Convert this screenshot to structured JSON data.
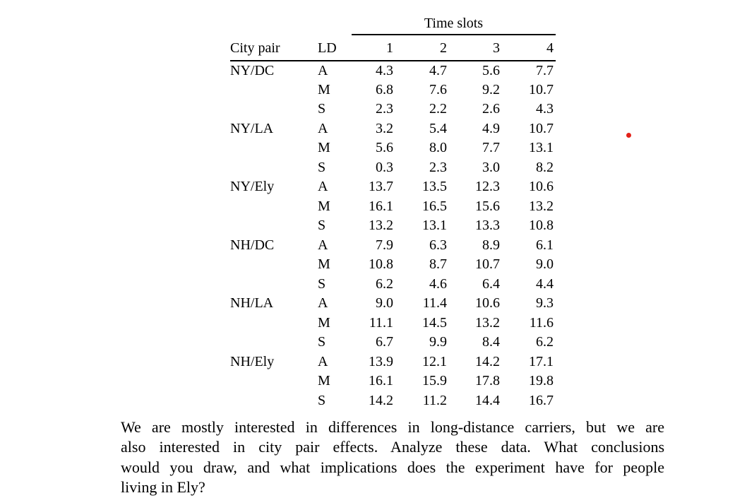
{
  "colors": {
    "background": "#ffffff",
    "text": "#000000",
    "marker": "#e32119"
  },
  "table": {
    "title": "Time slots",
    "columns": {
      "city": "City pair",
      "ld": "LD",
      "slots": [
        "1",
        "2",
        "3",
        "4"
      ]
    },
    "groups": [
      {
        "city": "NY/DC",
        "rows": [
          {
            "ld": "A",
            "values": [
              "4.3",
              "4.7",
              "5.6",
              "7.7"
            ]
          },
          {
            "ld": "M",
            "values": [
              "6.8",
              "7.6",
              "9.2",
              "10.7"
            ]
          },
          {
            "ld": "S",
            "values": [
              "2.3",
              "2.2",
              "2.6",
              "4.3"
            ]
          }
        ]
      },
      {
        "city": "NY/LA",
        "rows": [
          {
            "ld": "A",
            "values": [
              "3.2",
              "5.4",
              "4.9",
              "10.7"
            ]
          },
          {
            "ld": "M",
            "values": [
              "5.6",
              "8.0",
              "7.7",
              "13.1"
            ]
          },
          {
            "ld": "S",
            "values": [
              "0.3",
              "2.3",
              "3.0",
              "8.2"
            ]
          }
        ]
      },
      {
        "city": "NY/Ely",
        "rows": [
          {
            "ld": "A",
            "values": [
              "13.7",
              "13.5",
              "12.3",
              "10.6"
            ]
          },
          {
            "ld": "M",
            "values": [
              "16.1",
              "16.5",
              "15.6",
              "13.2"
            ]
          },
          {
            "ld": "S",
            "values": [
              "13.2",
              "13.1",
              "13.3",
              "10.8"
            ]
          }
        ]
      },
      {
        "city": "NH/DC",
        "rows": [
          {
            "ld": "A",
            "values": [
              "7.9",
              "6.3",
              "8.9",
              "6.1"
            ]
          },
          {
            "ld": "M",
            "values": [
              "10.8",
              "8.7",
              "10.7",
              "9.0"
            ]
          },
          {
            "ld": "S",
            "values": [
              "6.2",
              "4.6",
              "6.4",
              "4.4"
            ]
          }
        ]
      },
      {
        "city": "NH/LA",
        "rows": [
          {
            "ld": "A",
            "values": [
              "9.0",
              "11.4",
              "10.6",
              "9.3"
            ]
          },
          {
            "ld": "M",
            "values": [
              "11.1",
              "14.5",
              "13.2",
              "11.6"
            ]
          },
          {
            "ld": "S",
            "values": [
              "6.7",
              "9.9",
              "8.4",
              "6.2"
            ]
          }
        ]
      },
      {
        "city": "NH/Ely",
        "rows": [
          {
            "ld": "A",
            "values": [
              "13.9",
              "12.1",
              "14.2",
              "17.1"
            ]
          },
          {
            "ld": "M",
            "values": [
              "16.1",
              "15.9",
              "17.8",
              "19.8"
            ]
          },
          {
            "ld": "S",
            "values": [
              "14.2",
              "11.2",
              "14.4",
              "16.7"
            ]
          }
        ]
      }
    ]
  },
  "question": {
    "lines": [
      "We are mostly interested in differences in long-distance carriers, but we are",
      "also interested in city pair effects. Analyze these data. What conclusions",
      "would you draw, and what implications does the experiment have for people",
      "living in Ely?"
    ]
  }
}
